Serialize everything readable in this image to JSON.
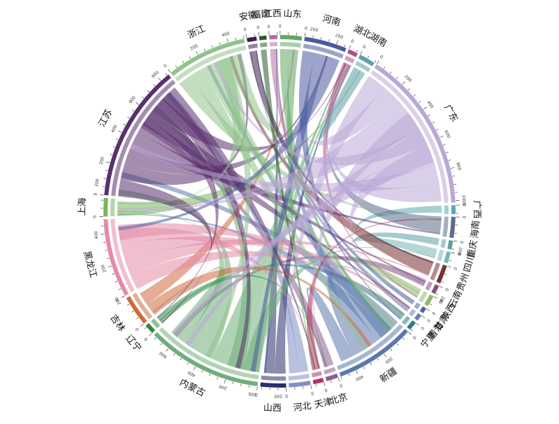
{
  "diagram": {
    "type": "chord",
    "segments": [
      {
        "label": "广西",
        "size": 55,
        "color": "#5aa9ad",
        "ticks": [
          "0"
        ]
      },
      {
        "label": "海南",
        "size": 130,
        "color": "#5b6a8e",
        "ticks": [
          "0",
          "200"
        ]
      },
      {
        "label": "重庆",
        "size": 55,
        "color": "#5d9ea2",
        "ticks": [
          "0"
        ]
      },
      {
        "label": "四川",
        "size": 70,
        "color": "#73b7b5",
        "ticks": [
          "0"
        ]
      },
      {
        "label": "贵州",
        "size": 115,
        "color": "#7a2f33",
        "ticks": [
          "0",
          "200"
        ]
      },
      {
        "label": "云南",
        "size": 55,
        "color": "#8a4d82",
        "ticks": [
          "0"
        ]
      },
      {
        "label": "陕西",
        "size": 70,
        "color": "#8fb86a",
        "ticks": [
          "0"
        ]
      },
      {
        "label": "甘肃",
        "size": 35,
        "color": "#4a64a0",
        "ticks": [
          "0"
        ]
      },
      {
        "label": "青海",
        "size": 40,
        "color": "#6c7fb3",
        "ticks": [
          "0"
        ]
      },
      {
        "label": "宁夏",
        "size": 55,
        "color": "#2f7c82",
        "ticks": [
          "0"
        ]
      },
      {
        "label": "新疆",
        "size": 500,
        "color": "#5b78ad",
        "ticks": [
          "0",
          "200",
          "400"
        ]
      },
      {
        "label": "北京",
        "size": 75,
        "color": "#8e5e90",
        "ticks": [
          "0"
        ]
      },
      {
        "label": "天津",
        "size": 65,
        "color": "#b3315c",
        "ticks": [
          "0"
        ]
      },
      {
        "label": "河北",
        "size": 135,
        "color": "#7d8fc4",
        "ticks": [
          "0",
          "200"
        ]
      },
      {
        "label": "山西",
        "size": 160,
        "color": "#27306b",
        "ticks": [
          "0",
          "200"
        ]
      },
      {
        "label": "内蒙古",
        "size": 720,
        "color": "#6fae7a",
        "ticks": [
          "0",
          "200",
          "400",
          "600"
        ]
      },
      {
        "label": "辽宁",
        "size": 60,
        "color": "#2f8a3f",
        "ticks": [
          "0"
        ]
      },
      {
        "label": "吉林",
        "size": 190,
        "color": "#d0693f",
        "ticks": [
          "0",
          "200"
        ]
      },
      {
        "label": "黑龙江",
        "size": 490,
        "color": "#e38aa5",
        "ticks": [
          "0",
          "200",
          "400"
        ]
      },
      {
        "label": "上海",
        "size": 115,
        "color": "#79b55c",
        "ticks": [
          "0",
          "200"
        ]
      },
      {
        "label": "江苏",
        "size": 860,
        "color": "#5a2f6e",
        "ticks": [
          "0",
          "200",
          "400",
          "600",
          "800"
        ]
      },
      {
        "label": "浙江",
        "size": 500,
        "color": "#90c38a",
        "ticks": [
          "0",
          "200",
          "400"
        ]
      },
      {
        "label": "安徽",
        "size": 60,
        "color": "#3d1f4f",
        "ticks": [
          "0"
        ]
      },
      {
        "label": "福建",
        "size": 45,
        "color": "#2b5a2a",
        "ticks": [
          "0"
        ]
      },
      {
        "label": "江西",
        "size": 50,
        "color": "#b56fa3",
        "ticks": [
          "0"
        ]
      },
      {
        "label": "山东",
        "size": 135,
        "color": "#5da865",
        "ticks": [
          "0",
          "200"
        ]
      },
      {
        "label": "河南",
        "size": 265,
        "color": "#4a5aa0",
        "ticks": [
          "0",
          "200"
        ]
      },
      {
        "label": "湖北",
        "size": 60,
        "color": "#b24a8a",
        "ticks": [
          "0"
        ]
      },
      {
        "label": "湖南",
        "size": 100,
        "color": "#5aa3a8",
        "ticks": [
          "0"
        ]
      },
      {
        "label": "广东",
        "size": 1010,
        "color": "#b9a7d6",
        "ticks": [
          "0",
          "200",
          "400",
          "600",
          "800",
          "1000"
        ]
      }
    ]
  }
}
